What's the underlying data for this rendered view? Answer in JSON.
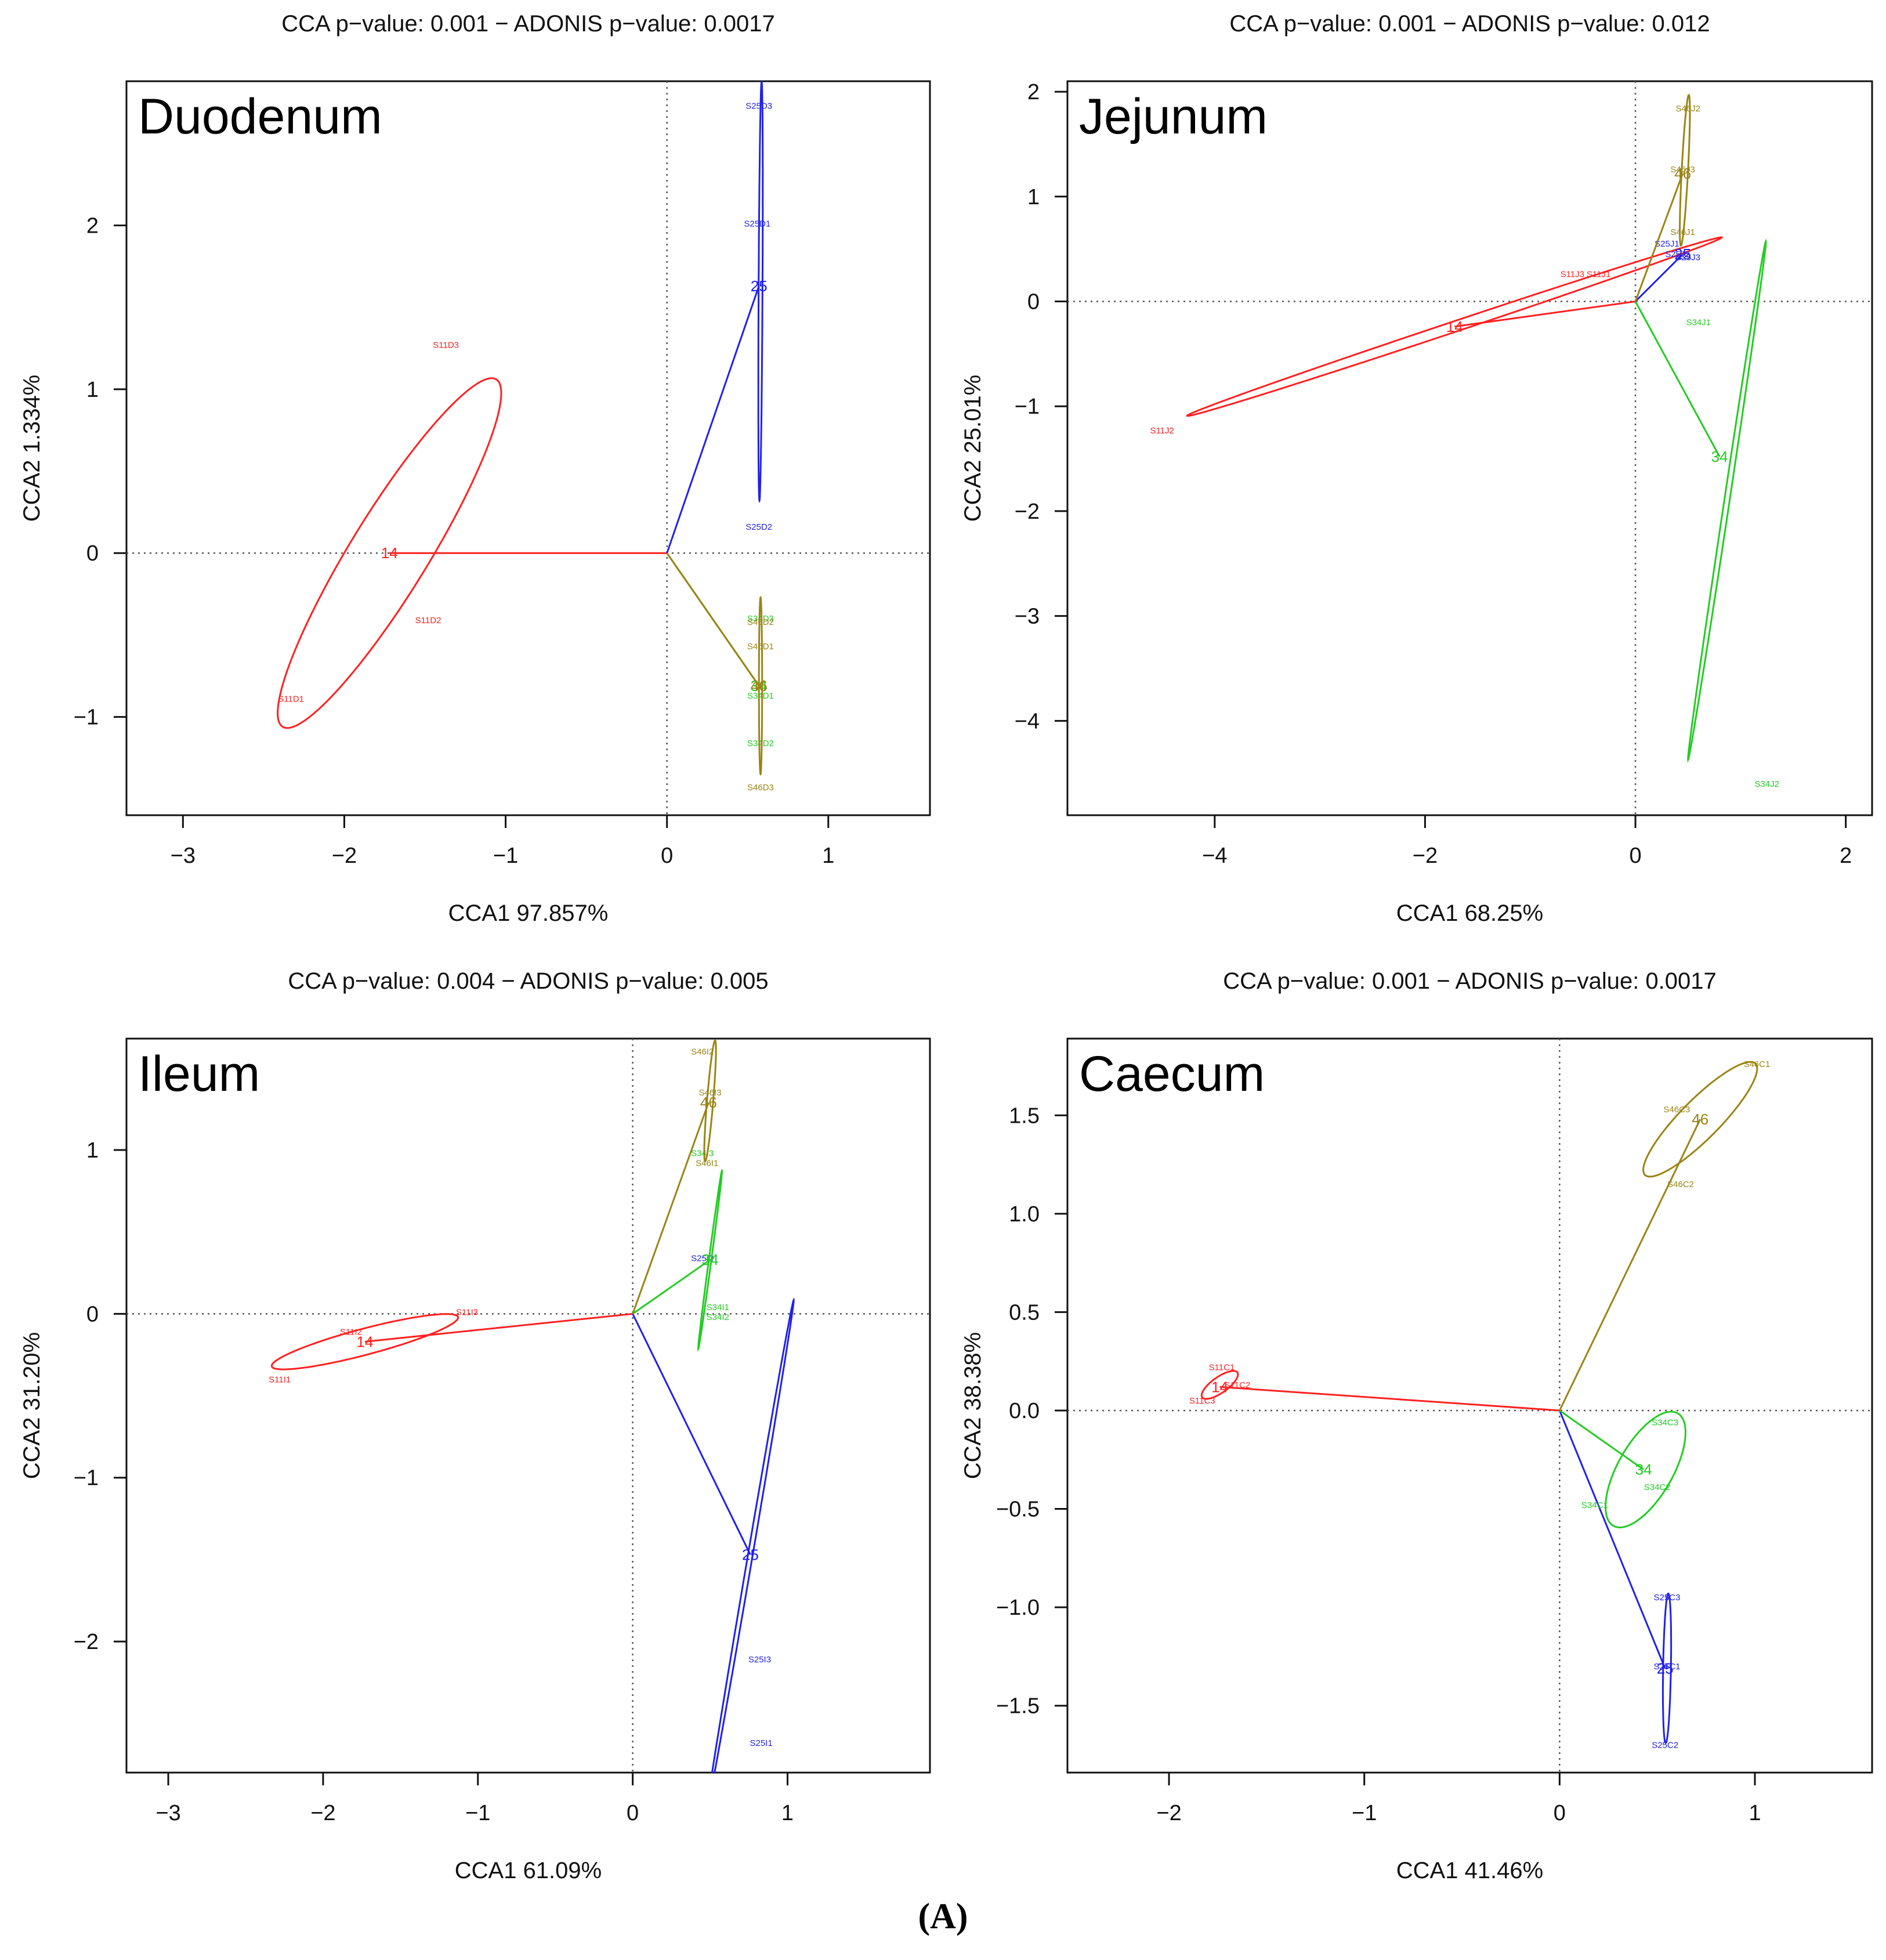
{
  "caption": "(A)",
  "colors": {
    "14": "#ff2020",
    "25": "#2020ee",
    "34": "#22cc22",
    "46": "#9a8414"
  },
  "chart_data": [
    {
      "type": "scatter",
      "title": "CCA p−value: 0.001 − ADONIS p−value: 0.0017",
      "region": "Duodenum",
      "xlabel": "CCA1 97.857%",
      "ylabel": "CCA2  1.334%",
      "xlim": [
        -3.35,
        1.63
      ],
      "ylim": [
        -1.6,
        2.88
      ],
      "xticks": [
        -3,
        -2,
        -1,
        0,
        1
      ],
      "yticks": [
        -1,
        0,
        1,
        2
      ],
      "groups": [
        {
          "name": "14",
          "centroid": [
            -1.72,
            0.0
          ],
          "samples": [
            {
              "label": "S11D3",
              "x": -1.37,
              "y": 1.27
            },
            {
              "label": "S11D2",
              "x": -1.48,
              "y": -0.41
            },
            {
              "label": "S11D1",
              "x": -2.33,
              "y": -0.89
            }
          ],
          "ellipse": {
            "cx": -1.72,
            "cy": 0.0,
            "rx": 1.25,
            "ry": 0.24,
            "angle": 58
          }
        },
        {
          "name": "25",
          "centroid": [
            0.57,
            1.63
          ],
          "samples": [
            {
              "label": "S25D3",
              "x": 0.57,
              "y": 2.73
            },
            {
              "label": "S25D1",
              "x": 0.56,
              "y": 2.01
            },
            {
              "label": "S25D2",
              "x": 0.57,
              "y": 0.16
            }
          ],
          "ellipse": {
            "cx": 0.58,
            "cy": 1.6,
            "rx": 1.28,
            "ry": 0.012,
            "angle": 89.7
          }
        },
        {
          "name": "34",
          "centroid": [
            0.57,
            -0.81
          ],
          "samples": [
            {
              "label": "S34D3",
              "x": 0.58,
              "y": -0.4
            },
            {
              "label": "S34D1",
              "x": 0.58,
              "y": -0.87
            },
            {
              "label": "S34D2",
              "x": 0.58,
              "y": -1.16
            }
          ],
          "ellipse": null
        },
        {
          "name": "46",
          "centroid": [
            0.57,
            -0.81
          ],
          "samples": [
            {
              "label": "S46D2",
              "x": 0.58,
              "y": -0.42
            },
            {
              "label": "S46D1",
              "x": 0.58,
              "y": -0.57
            },
            {
              "label": "S46D3",
              "x": 0.58,
              "y": -1.43
            }
          ],
          "ellipse": {
            "cx": 0.58,
            "cy": -0.81,
            "rx": 0.54,
            "ry": 0.01,
            "angle": 90
          }
        }
      ]
    },
    {
      "type": "scatter",
      "title": "CCA p−value: 0.001 − ADONIS p−value: 0.012",
      "region": "Jejunum",
      "xlabel": "CCA1 68.25%",
      "ylabel": "CCA2 25.01%",
      "xlim": [
        -5.4,
        2.25
      ],
      "ylim": [
        -4.9,
        2.1
      ],
      "xticks": [
        -4,
        -2,
        0,
        2
      ],
      "yticks": [
        -4,
        -3,
        -2,
        -1,
        0,
        1,
        2
      ],
      "groups": [
        {
          "name": "14",
          "centroid": [
            -1.72,
            -0.24
          ],
          "samples": [
            {
              "label": "S11J2",
              "x": -4.5,
              "y": -1.23
            },
            {
              "label": "S11J3",
              "x": -0.6,
              "y": 0.26
            },
            {
              "label": "S11J1",
              "x": -0.35,
              "y": 0.26
            }
          ],
          "ellipse": {
            "cx": -1.72,
            "cy": -0.24,
            "rx": 2.68,
            "ry": 0.05,
            "angle": 18.5
          }
        },
        {
          "name": "25",
          "centroid": [
            0.45,
            0.45
          ],
          "samples": [
            {
              "label": "S25J1",
              "x": 0.3,
              "y": 0.55
            },
            {
              "label": "S25J2",
              "x": 0.4,
              "y": 0.45
            },
            {
              "label": "S25J3",
              "x": 0.5,
              "y": 0.42
            }
          ],
          "ellipse": null
        },
        {
          "name": "34",
          "centroid": [
            0.8,
            -1.48
          ],
          "samples": [
            {
              "label": "S34J1",
              "x": 0.6,
              "y": -0.2
            },
            {
              "label": "S34J2",
              "x": 1.25,
              "y": -4.6
            }
          ],
          "ellipse": {
            "cx": 0.87,
            "cy": -1.9,
            "rx": 2.5,
            "ry": 0.025,
            "angle": 81.5
          }
        },
        {
          "name": "46",
          "centroid": [
            0.45,
            1.22
          ],
          "samples": [
            {
              "label": "S46J2",
              "x": 0.5,
              "y": 1.84
            },
            {
              "label": "S46J3",
              "x": 0.45,
              "y": 1.26
            },
            {
              "label": "S46J1",
              "x": 0.45,
              "y": 0.66
            }
          ],
          "ellipse": {
            "cx": 0.47,
            "cy": 1.25,
            "rx": 0.72,
            "ry": 0.03,
            "angle": 87
          }
        }
      ]
    },
    {
      "type": "scatter",
      "title": "CCA p−value: 0.004 − ADONIS p−value: 0.005",
      "region": "Ileum",
      "xlabel": "CCA1 61.09%",
      "ylabel": "CCA2 31.20%",
      "xlim": [
        -3.27,
        1.92
      ],
      "ylim": [
        -2.8,
        1.68
      ],
      "xticks": [
        -3,
        -2,
        -1,
        0,
        1
      ],
      "yticks": [
        -2,
        -1,
        0,
        1
      ],
      "groups": [
        {
          "name": "14",
          "centroid": [
            -1.73,
            -0.17
          ],
          "samples": [
            {
              "label": "S11I2",
              "x": -1.82,
              "y": -0.11
            },
            {
              "label": "S11I3",
              "x": -1.07,
              "y": 0.01
            },
            {
              "label": "S11I1",
              "x": -2.28,
              "y": -0.4
            }
          ],
          "ellipse": {
            "cx": -1.73,
            "cy": -0.17,
            "rx": 0.62,
            "ry": 0.08,
            "angle": 14
          }
        },
        {
          "name": "25",
          "centroid": [
            0.76,
            -1.47
          ],
          "samples": [
            {
              "label": "S25I2",
              "x": 0.45,
              "y": 0.34
            },
            {
              "label": "S25I3",
              "x": 0.82,
              "y": -2.11
            },
            {
              "label": "S25I1",
              "x": 0.83,
              "y": -2.62
            }
          ],
          "ellipse": {
            "cx": 0.76,
            "cy": -1.47,
            "rx": 1.58,
            "ry": 0.015,
            "angle": 79.8
          }
        },
        {
          "name": "34",
          "centroid": [
            0.5,
            0.33
          ],
          "samples": [
            {
              "label": "S34I3",
              "x": 0.45,
              "y": 0.98
            },
            {
              "label": "S34I1",
              "x": 0.55,
              "y": 0.04
            },
            {
              "label": "S34I2",
              "x": 0.55,
              "y": -0.02
            }
          ],
          "ellipse": {
            "cx": 0.5,
            "cy": 0.33,
            "rx": 0.55,
            "ry": 0.008,
            "angle": 82
          }
        },
        {
          "name": "46",
          "centroid": [
            0.49,
            1.29
          ],
          "samples": [
            {
              "label": "S46I2",
              "x": 0.45,
              "y": 1.6
            },
            {
              "label": "S46I3",
              "x": 0.5,
              "y": 1.35
            },
            {
              "label": "S46I1",
              "x": 0.48,
              "y": 0.92
            }
          ],
          "ellipse": {
            "cx": 0.5,
            "cy": 1.3,
            "rx": 0.37,
            "ry": 0.02,
            "angle": 85
          }
        }
      ]
    },
    {
      "type": "scatter",
      "title": "CCA p−value: 0.001 − ADONIS p−value: 0.0017",
      "region": "Caecum",
      "xlabel": "CCA1 41.46%",
      "ylabel": "CCA2 38.38%",
      "xlim": [
        -2.52,
        1.6
      ],
      "ylim": [
        -1.84,
        1.89
      ],
      "xticks": [
        -2,
        -1,
        0,
        1
      ],
      "yticks": [
        -1.5,
        -1.0,
        -0.5,
        0.0,
        0.5,
        1.0,
        1.5
      ],
      "groups": [
        {
          "name": "14",
          "centroid": [
            -1.74,
            0.12
          ],
          "samples": [
            {
              "label": "S11C1",
              "x": -1.73,
              "y": 0.22
            },
            {
              "label": "S11C2",
              "x": -1.65,
              "y": 0.13
            },
            {
              "label": "S11C3",
              "x": -1.83,
              "y": 0.05
            }
          ],
          "ellipse": {
            "cx": -1.74,
            "cy": 0.13,
            "rx": 0.11,
            "ry": 0.04,
            "angle": 35
          }
        },
        {
          "name": "25",
          "centroid": [
            0.54,
            -1.31
          ],
          "samples": [
            {
              "label": "S25C3",
              "x": 0.55,
              "y": -0.95
            },
            {
              "label": "S25C1",
              "x": 0.55,
              "y": -1.3
            },
            {
              "label": "S25C2",
              "x": 0.54,
              "y": -1.7
            }
          ],
          "ellipse": {
            "cx": 0.55,
            "cy": -1.31,
            "rx": 0.38,
            "ry": 0.02,
            "angle": 89
          }
        },
        {
          "name": "34",
          "centroid": [
            0.43,
            -0.3
          ],
          "samples": [
            {
              "label": "S34C3",
              "x": 0.54,
              "y": -0.06
            },
            {
              "label": "S34C2",
              "x": 0.5,
              "y": -0.39
            },
            {
              "label": "S34C1",
              "x": 0.18,
              "y": -0.48
            }
          ],
          "ellipse": {
            "cx": 0.44,
            "cy": -0.3,
            "rx": 0.33,
            "ry": 0.14,
            "angle": 60
          }
        },
        {
          "name": "46",
          "centroid": [
            0.72,
            1.48
          ],
          "samples": [
            {
              "label": "S46C1",
              "x": 1.01,
              "y": 1.76
            },
            {
              "label": "S46C3",
              "x": 0.6,
              "y": 1.53
            },
            {
              "label": "S46C2",
              "x": 0.62,
              "y": 1.15
            }
          ],
          "ellipse": {
            "cx": 0.72,
            "cy": 1.48,
            "rx": 0.4,
            "ry": 0.1,
            "angle": 45
          }
        }
      ]
    }
  ]
}
